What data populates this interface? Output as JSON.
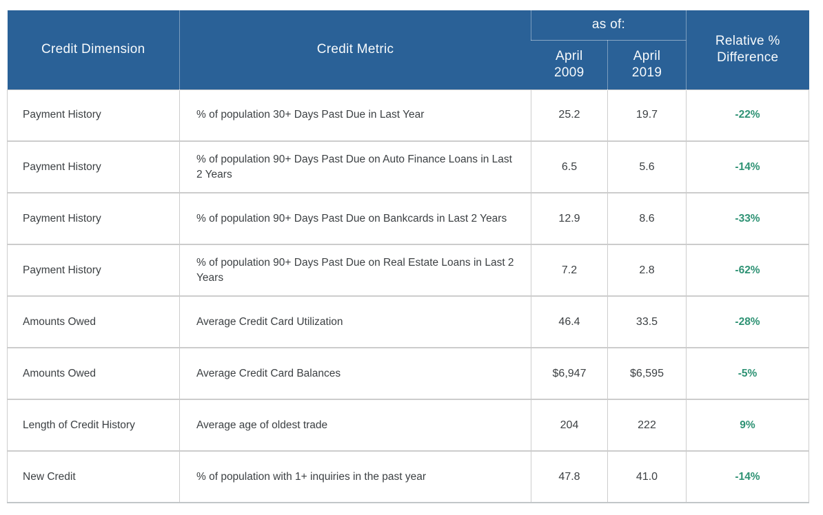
{
  "table": {
    "headers": {
      "credit_dimension": "Credit Dimension",
      "credit_metric": "Credit Metric",
      "as_of": "as of:",
      "april_2009": "April\n2009",
      "april_2019": "April\n2019",
      "relative_difference": "Relative %\nDifference"
    }
  },
  "colors": {
    "header_background": "#2a6197",
    "header_text": "#f7fafc",
    "body_text": "#3c4043",
    "positive_change_green": "#2e9274",
    "cell_border": "#cccccc"
  },
  "chart_data": {
    "type": "table",
    "column_group_label": "as of:",
    "column_group_spans": [
      "April 2009",
      "April 2019"
    ],
    "columns": [
      "Credit Dimension",
      "Credit Metric",
      "April 2009",
      "April 2019",
      "Relative % Difference"
    ],
    "rows": [
      [
        "Payment History",
        "% of population 30+ Days Past Due in Last Year",
        "25.2",
        "19.7",
        "-22%"
      ],
      [
        "Payment History",
        "% of population 90+ Days Past Due on Auto Finance Loans in Last 2 Years",
        "6.5",
        "5.6",
        "-14%"
      ],
      [
        "Payment History",
        "% of population 90+ Days Past Due on Bankcards in Last 2 Years",
        "12.9",
        "8.6",
        "-33%"
      ],
      [
        "Payment History",
        "% of population 90+ Days Past Due on Real Estate Loans in Last 2 Years",
        "7.2",
        "2.8",
        "-62%"
      ],
      [
        "Amounts Owed",
        "Average Credit Card Utilization",
        "46.4",
        "33.5",
        "-28%"
      ],
      [
        "Amounts Owed",
        "Average Credit Card Balances",
        "$6,947",
        "$6,595",
        "-5%"
      ],
      [
        "Length of Credit History",
        "Average age of oldest trade",
        "204",
        "222",
        "9%"
      ],
      [
        "New Credit",
        "% of population with 1+ inquiries in the past year",
        "47.8",
        "41.0",
        "-14%"
      ]
    ]
  }
}
